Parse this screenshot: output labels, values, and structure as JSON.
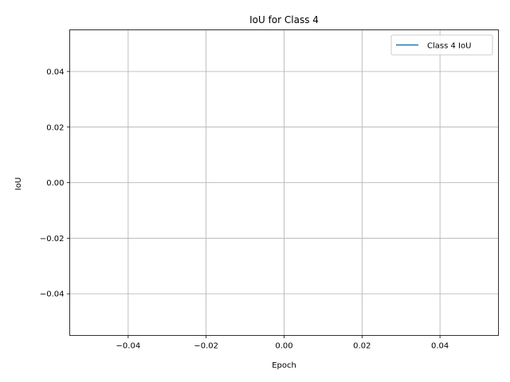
{
  "chart_data": {
    "type": "line",
    "title": "IoU for Class 4",
    "xlabel": "Epoch",
    "ylabel": "IoU",
    "xlim": [
      -0.055,
      0.055
    ],
    "ylim": [
      -0.055,
      0.055
    ],
    "xticks": [
      -0.04,
      -0.02,
      0.0,
      0.02,
      0.04
    ],
    "yticks": [
      -0.04,
      -0.02,
      0.0,
      0.02,
      0.04
    ],
    "xtick_labels": [
      "−0.04",
      "−0.02",
      "0.00",
      "0.02",
      "0.04"
    ],
    "ytick_labels": [
      "−0.04",
      "−0.02",
      "0.00",
      "0.02",
      "0.04"
    ],
    "grid": true,
    "legend_position": "top-right",
    "series": [
      {
        "name": "Class 4 IoU",
        "color": "#1f77b4",
        "x": [],
        "y": []
      }
    ]
  }
}
